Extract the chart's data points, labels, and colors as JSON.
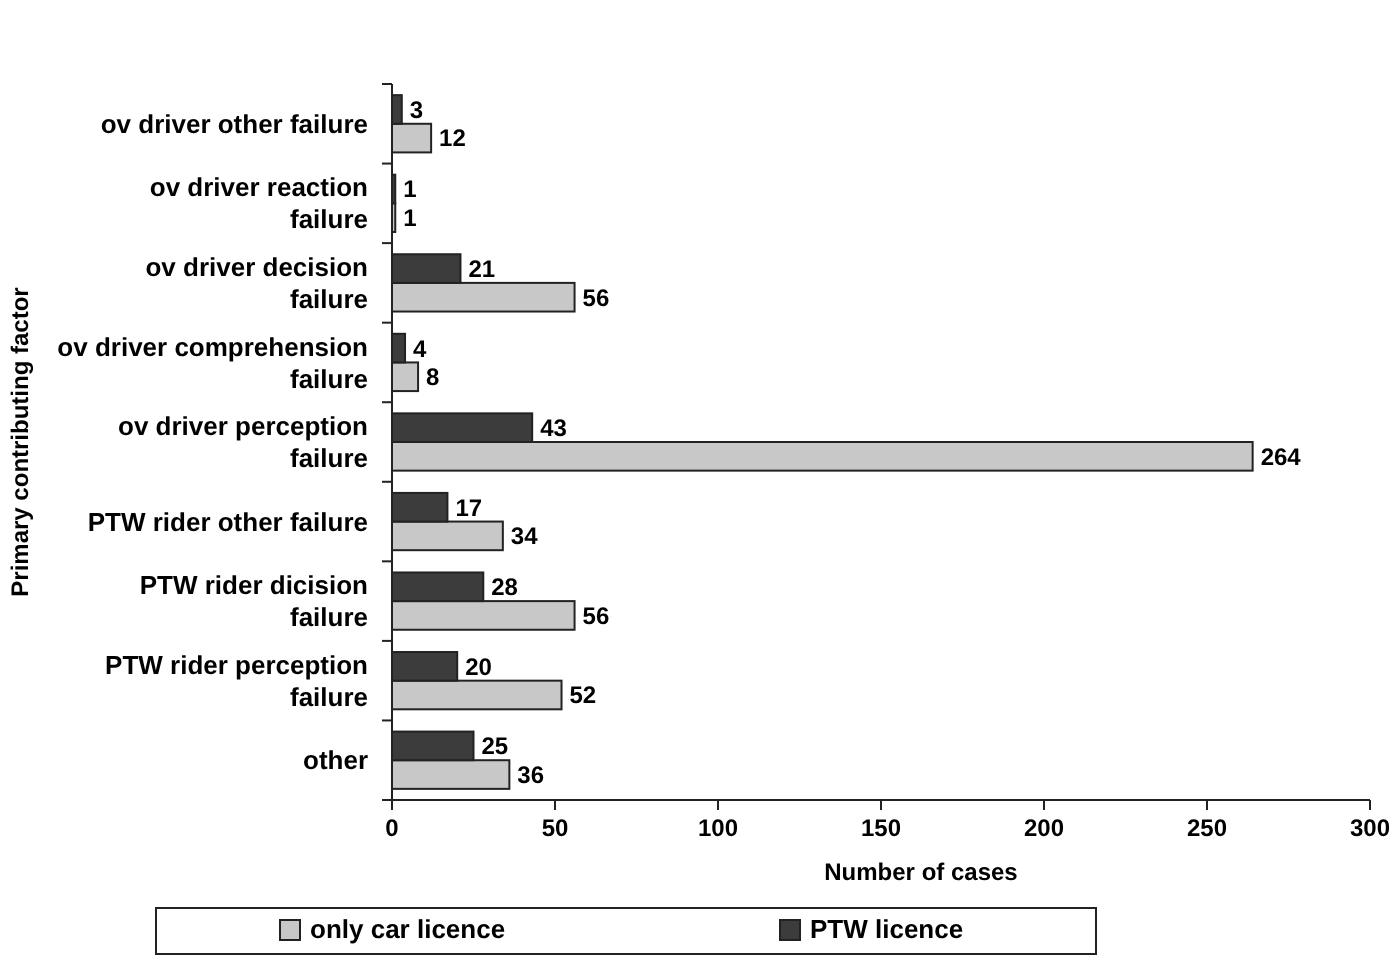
{
  "chart_data": {
    "type": "bar",
    "orientation": "horizontal",
    "xlabel": "Number of cases",
    "ylabel": "Primary contributing factor",
    "categories": [
      "ov driver other failure",
      "ov driver reaction failure",
      "ov driver decision failure",
      "ov driver comprehension failure",
      "ov driver perception failure",
      "PTW rider other failure",
      "PTW rider dicision failure",
      "PTW rider perception failure",
      "other"
    ],
    "series": [
      {
        "name": "only car licence",
        "color": "#c8c8c8",
        "values": [
          12,
          1,
          56,
          8,
          264,
          34,
          56,
          52,
          36
        ]
      },
      {
        "name": "PTW licence",
        "color": "#3c3c3c",
        "values": [
          3,
          1,
          21,
          4,
          43,
          17,
          28,
          20,
          25
        ]
      }
    ],
    "xlim": [
      0,
      300
    ],
    "xticks": [
      0,
      50,
      100,
      150,
      200,
      250,
      300
    ],
    "data_labels": true,
    "legend": "bottom",
    "grid": false
  }
}
